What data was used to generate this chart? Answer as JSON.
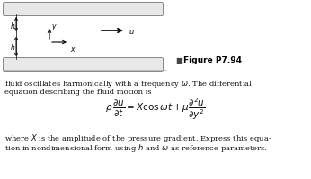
{
  "fig_width": 3.46,
  "fig_height": 2.01,
  "dpi": 100,
  "bg_color": "#ffffff",
  "figure_label": "Figure P7.94",
  "text_line1": "fluid oscillates harmonically with a frequency $\\omega$. The differential",
  "text_line2": "equation describing the fluid motion is",
  "equation": "$\\rho\\,\\dfrac{\\partial u}{\\partial t} = X\\cos\\omega t + \\mu\\dfrac{\\partial^2 u}{\\partial y^2}$",
  "bottom_line1": "where $X$ is the amplitude of the pressure gradient. Express this equa-",
  "bottom_line2": "tion in nondimensional form using $h$ and $\\omega$ as reference parameters.",
  "plate_facecolor": "#e8e8e8",
  "plate_edgecolor": "#888888",
  "text_color": "#111111"
}
